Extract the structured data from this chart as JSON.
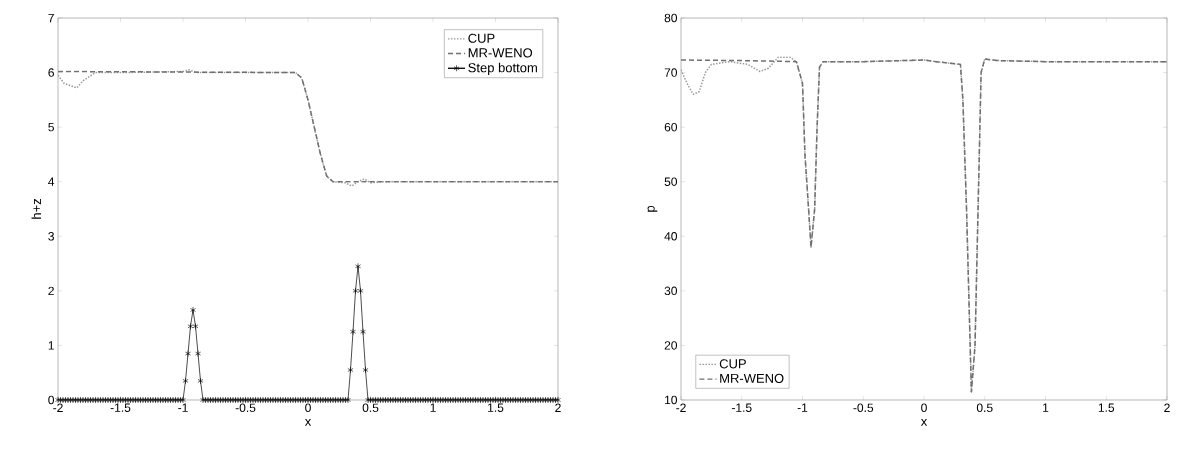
{
  "chart_data": [
    {
      "type": "line",
      "xlabel": "x",
      "ylabel": "h+z",
      "xlim": [
        -2,
        2
      ],
      "ylim": [
        0,
        7
      ],
      "xticks": [
        -2,
        -1.5,
        -1,
        -0.5,
        0,
        0.5,
        1,
        1.5,
        2
      ],
      "yticks": [
        0,
        1,
        2,
        3,
        4,
        5,
        6,
        7
      ],
      "grid": false,
      "legend": "top right",
      "series": [
        {
          "name": "CUP",
          "color": "#999999",
          "line_style": "dotted",
          "marker": "none",
          "x": [
            -2,
            -1.95,
            -1.85,
            -1.8,
            -1.7,
            -1.5,
            -1.0,
            -0.95,
            -0.9,
            -0.5,
            -0.1,
            -0.05,
            0.0,
            0.05,
            0.1,
            0.15,
            0.2,
            0.3,
            0.35,
            0.4,
            0.45,
            0.5,
            0.6,
            2
          ],
          "values": [
            5.95,
            5.8,
            5.72,
            5.85,
            6.0,
            6.0,
            6.02,
            6.05,
            6.0,
            6.0,
            6.0,
            5.9,
            5.5,
            5.0,
            4.5,
            4.1,
            4.0,
            3.98,
            3.92,
            4.0,
            4.05,
            3.98,
            4.0,
            4.0
          ]
        },
        {
          "name": "MR-WENO",
          "color": "#707070",
          "line_style": "dashed",
          "marker": "none",
          "x": [
            -2,
            -0.1,
            -0.05,
            0.0,
            0.05,
            0.1,
            0.15,
            0.2,
            2
          ],
          "values": [
            6.02,
            6.0,
            5.9,
            5.5,
            5.0,
            4.5,
            4.1,
            4.0,
            4.0
          ]
        },
        {
          "name": "Step bottom",
          "color": "#000000",
          "line_style": "solid",
          "marker": "cross",
          "x": [
            -2.0,
            -1.98,
            -1.96,
            -1.94,
            -1.92,
            -1.9,
            -1.88,
            -1.86,
            -1.84,
            -1.82,
            -1.8,
            -1.78,
            -1.76,
            -1.74,
            -1.72,
            -1.7,
            -1.68,
            -1.66,
            -1.64,
            -1.62,
            -1.6,
            -1.58,
            -1.56,
            -1.54,
            -1.52,
            -1.5,
            -1.48,
            -1.46,
            -1.44,
            -1.42,
            -1.4,
            -1.38,
            -1.36,
            -1.34,
            -1.32,
            -1.3,
            -1.28,
            -1.26,
            -1.24,
            -1.22,
            -1.2,
            -1.18,
            -1.16,
            -1.14,
            -1.12,
            -1.1,
            -1.08,
            -1.06,
            -1.04,
            -1.02,
            -1.0,
            -0.98,
            -0.96,
            -0.94,
            -0.92,
            -0.9,
            -0.88,
            -0.86,
            -0.84,
            -0.82,
            -0.8,
            -0.78,
            -0.76,
            -0.74,
            -0.72,
            -0.7,
            -0.68,
            -0.66,
            -0.64,
            -0.62,
            -0.6,
            -0.58,
            -0.56,
            -0.54,
            -0.52,
            -0.5,
            -0.48,
            -0.46,
            -0.44,
            -0.42,
            -0.4,
            -0.38,
            -0.36,
            -0.34,
            -0.32,
            -0.3,
            -0.28,
            -0.26,
            -0.24,
            -0.22,
            -0.2,
            -0.18,
            -0.16,
            -0.14,
            -0.12,
            -0.1,
            -0.08,
            -0.06,
            -0.04,
            -0.02,
            0.0,
            0.02,
            0.04,
            0.06,
            0.08,
            0.1,
            0.12,
            0.14,
            0.16,
            0.18,
            0.2,
            0.22,
            0.24,
            0.26,
            0.28,
            0.3,
            0.32,
            0.34,
            0.36,
            0.38,
            0.4,
            0.42,
            0.44,
            0.46,
            0.48,
            0.5,
            0.52,
            0.54,
            0.56,
            0.58,
            0.6,
            0.62,
            0.64,
            0.66,
            0.68,
            0.7,
            0.72,
            0.74,
            0.76,
            0.78,
            0.8,
            0.82,
            0.84,
            0.86,
            0.88,
            0.9,
            0.92,
            0.94,
            0.96,
            0.98,
            1.0,
            1.02,
            1.04,
            1.06,
            1.08,
            1.1,
            1.12,
            1.14,
            1.16,
            1.18,
            1.2,
            1.22,
            1.24,
            1.26,
            1.28,
            1.3,
            1.32,
            1.34,
            1.36,
            1.38,
            1.4,
            1.42,
            1.44,
            1.46,
            1.48,
            1.5,
            1.52,
            1.54,
            1.56,
            1.58,
            1.6,
            1.62,
            1.64,
            1.66,
            1.68,
            1.7,
            1.72,
            1.74,
            1.76,
            1.78,
            1.8,
            1.82,
            1.84,
            1.86,
            1.88,
            1.9,
            1.92,
            1.94,
            1.96,
            1.98,
            2.0
          ],
          "values": [
            0,
            0,
            0,
            0,
            0,
            0,
            0,
            0,
            0,
            0,
            0,
            0,
            0,
            0,
            0,
            0,
            0,
            0,
            0,
            0,
            0,
            0,
            0,
            0,
            0,
            0,
            0,
            0,
            0,
            0,
            0,
            0,
            0,
            0,
            0,
            0,
            0,
            0,
            0,
            0,
            0,
            0,
            0,
            0,
            0,
            0,
            0,
            0,
            0,
            0,
            0,
            0.35,
            0.85,
            1.35,
            1.65,
            1.35,
            0.85,
            0.35,
            0,
            0,
            0,
            0,
            0,
            0,
            0,
            0,
            0,
            0,
            0,
            0,
            0,
            0,
            0,
            0,
            0,
            0,
            0,
            0,
            0,
            0,
            0,
            0,
            0,
            0,
            0,
            0,
            0,
            0,
            0,
            0,
            0,
            0,
            0,
            0,
            0,
            0,
            0,
            0,
            0,
            0,
            0,
            0,
            0,
            0,
            0,
            0,
            0,
            0,
            0,
            0,
            0,
            0,
            0,
            0,
            0,
            0,
            0,
            0.55,
            1.25,
            2.0,
            2.45,
            2.0,
            1.25,
            0.55,
            0,
            0,
            0,
            0,
            0,
            0,
            0,
            0,
            0,
            0,
            0,
            0,
            0,
            0,
            0,
            0,
            0,
            0,
            0,
            0,
            0,
            0,
            0,
            0,
            0,
            0,
            0,
            0,
            0,
            0,
            0,
            0,
            0,
            0,
            0,
            0,
            0,
            0,
            0,
            0,
            0,
            0,
            0,
            0,
            0,
            0,
            0,
            0,
            0,
            0,
            0,
            0,
            0,
            0,
            0,
            0,
            0,
            0,
            0,
            0,
            0,
            0,
            0,
            0,
            0,
            0,
            0,
            0,
            0,
            0,
            0,
            0,
            0,
            0,
            0,
            0,
            0
          ]
        }
      ]
    },
    {
      "type": "line",
      "xlabel": "x",
      "ylabel": "p",
      "xlim": [
        -2,
        2
      ],
      "ylim": [
        10,
        80
      ],
      "xticks": [
        -2,
        -1.5,
        -1,
        -0.5,
        0,
        0.5,
        1,
        1.5,
        2
      ],
      "yticks": [
        10,
        20,
        30,
        40,
        50,
        60,
        70,
        80
      ],
      "grid": false,
      "legend": "bottom left",
      "series": [
        {
          "name": "CUP",
          "color": "#999999",
          "line_style": "dotted",
          "marker": "none",
          "x": [
            -2,
            -1.95,
            -1.9,
            -1.85,
            -1.8,
            -1.75,
            -1.6,
            -1.45,
            -1.35,
            -1.28,
            -1.2,
            -1.1,
            -1.05,
            -1.0,
            -0.98,
            -0.95,
            -0.93,
            -0.9,
            -0.88,
            -0.86,
            -0.83,
            -0.5,
            0.0,
            0.1,
            0.3,
            0.32,
            0.35,
            0.38,
            0.39,
            0.42,
            0.45,
            0.47,
            0.5,
            0.6,
            1.0,
            2
          ],
          "values": [
            70.5,
            68,
            66,
            66.5,
            70,
            71.5,
            72,
            71.5,
            70.2,
            70.8,
            72.8,
            72.8,
            72,
            68,
            55,
            45,
            38,
            45,
            60,
            71,
            72,
            72,
            72.3,
            72,
            71.5,
            65,
            45,
            20,
            11.5,
            20,
            50,
            70,
            72.5,
            72.2,
            72,
            72
          ]
        },
        {
          "name": "MR-WENO",
          "color": "#707070",
          "line_style": "dashed",
          "marker": "none",
          "x": [
            -2,
            -1.5,
            -1.05,
            -1.0,
            -0.98,
            -0.95,
            -0.93,
            -0.9,
            -0.88,
            -0.86,
            -0.83,
            -0.5,
            0.0,
            0.1,
            0.3,
            0.32,
            0.35,
            0.38,
            0.39,
            0.42,
            0.45,
            0.47,
            0.5,
            0.6,
            1.0,
            2
          ],
          "values": [
            72.3,
            72.2,
            72,
            68,
            55,
            45,
            38,
            45,
            60,
            71,
            72,
            72,
            72.3,
            72,
            71.5,
            65,
            45,
            20,
            11.5,
            20,
            50,
            70,
            72.5,
            72.2,
            72,
            72
          ]
        }
      ]
    }
  ]
}
